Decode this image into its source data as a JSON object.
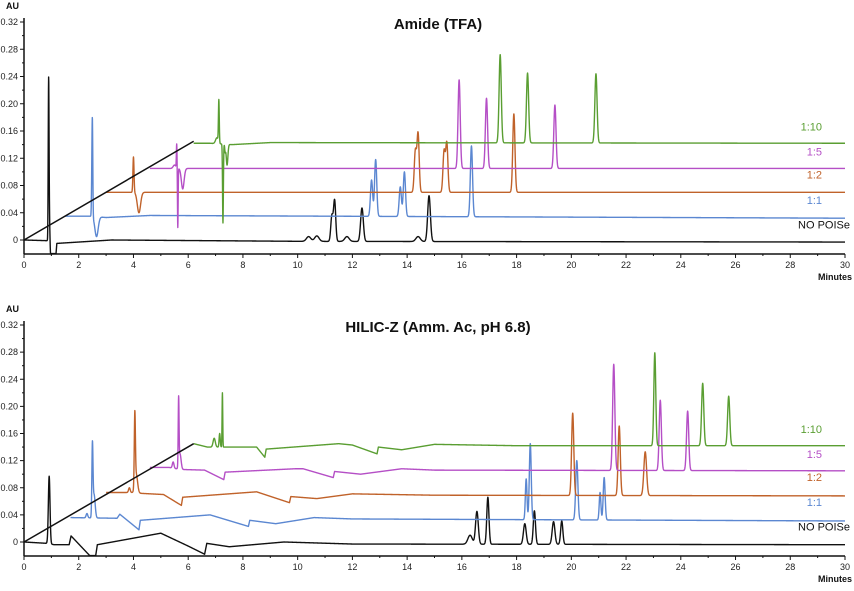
{
  "chart_data": [
    {
      "type": "line",
      "title": "Amide (TFA)",
      "xlabel": "Minutes",
      "ylabel": "AU",
      "xlim": [
        0,
        30
      ],
      "ylim": [
        -0.02,
        0.32
      ],
      "xticks": [
        "0",
        "2",
        "4",
        "6",
        "8",
        "10",
        "12",
        "14",
        "16",
        "18",
        "20",
        "22",
        "24",
        "26",
        "28",
        "30"
      ],
      "yticks": [
        "0",
        "0.04",
        "0.08",
        "0.12",
        "0.16",
        "0.20",
        "0.24",
        "0.28",
        "0.32"
      ],
      "grid": false,
      "gradient_line": [
        [
          0,
          0
        ],
        [
          6.2,
          0.145
        ]
      ],
      "series": [
        {
          "name": "NO POISe",
          "color": "#111111",
          "baseline": [
            [
              0,
              0
            ],
            [
              0.85,
              -0.001
            ],
            [
              0.98,
              -0.03
            ],
            [
              1.15,
              -0.03
            ],
            [
              1.2,
              -0.005
            ],
            [
              3.2,
              0
            ],
            [
              10.3,
              -0.002
            ],
            [
              30,
              -0.003
            ]
          ],
          "peaks": [
            [
              0.9,
              0.225,
              0.015
            ],
            [
              0.93,
              0.025,
              0.02
            ],
            [
              10.4,
              0.005,
              0.08
            ],
            [
              10.7,
              0.006,
              0.08
            ],
            [
              11.25,
              0.035,
              0.04
            ],
            [
              11.35,
              0.058,
              0.04
            ],
            [
              11.8,
              0.005,
              0.08
            ],
            [
              12.35,
              0.047,
              0.05
            ],
            [
              14.4,
              0.005,
              0.08
            ],
            [
              14.8,
              0.065,
              0.05
            ]
          ]
        },
        {
          "name": "1:1",
          "color": "#5b87d1",
          "baseline": [
            [
              1.5,
              0.035
            ],
            [
              2.4,
              0.035
            ],
            [
              3,
              0.033
            ],
            [
              4.6,
              0.036
            ],
            [
              30,
              0.032
            ]
          ],
          "peaks": [
            [
              2.48,
              0.08,
              0.015
            ],
            [
              2.5,
              0.16,
              0.015
            ],
            [
              2.65,
              0.005,
              0.06
            ],
            [
              12.7,
              0.088,
              0.04
            ],
            [
              12.85,
              0.118,
              0.04
            ],
            [
              13.75,
              0.078,
              0.04
            ],
            [
              13.9,
              0.1,
              0.04
            ],
            [
              16.35,
              0.138,
              0.04
            ]
          ]
        },
        {
          "name": "1:2",
          "color": "#c0622a",
          "baseline": [
            [
              3,
              0.07
            ],
            [
              30,
              0.07
            ]
          ],
          "peaks": [
            [
              4.0,
              0.122,
              0.02
            ],
            [
              4.2,
              0.04,
              0.06
            ],
            [
              14.3,
              0.13,
              0.04
            ],
            [
              14.4,
              0.156,
              0.04
            ],
            [
              15.35,
              0.13,
              0.04
            ],
            [
              15.45,
              0.142,
              0.04
            ],
            [
              17.9,
              0.185,
              0.04
            ]
          ]
        },
        {
          "name": "1:5",
          "color": "#b54fc6",
          "baseline": [
            [
              4.6,
              0.105
            ],
            [
              30,
              0.105
            ]
          ],
          "peaks": [
            [
              5.5,
              0.11,
              0.05
            ],
            [
              5.58,
              0.14,
              0.012
            ],
            [
              5.62,
              0.018,
              0.012
            ],
            [
              5.8,
              0.075,
              0.05
            ],
            [
              15.9,
              0.235,
              0.04
            ],
            [
              16.9,
              0.208,
              0.04
            ],
            [
              19.4,
              0.198,
              0.04
            ]
          ]
        },
        {
          "name": "1:10",
          "color": "#5a9e32",
          "baseline": [
            [
              6.2,
              0.142
            ],
            [
              6.8,
              0.142
            ],
            [
              7.6,
              0.14
            ],
            [
              9,
              0.143
            ],
            [
              30,
              0.142
            ]
          ],
          "peaks": [
            [
              7.05,
              0.15,
              0.05
            ],
            [
              7.12,
              0.203,
              0.015
            ],
            [
              7.27,
              0.025,
              0.015
            ],
            [
              7.35,
              0.13,
              0.015
            ],
            [
              7.42,
              0.11,
              0.03
            ],
            [
              17.4,
              0.272,
              0.04
            ],
            [
              18.4,
              0.245,
              0.04
            ],
            [
              20.9,
              0.244,
              0.04
            ]
          ]
        }
      ]
    },
    {
      "type": "line",
      "title": "HILIC-Z (Amm. Ac, pH 6.8)",
      "xlabel": "Minutes",
      "ylabel": "AU",
      "xlim": [
        0,
        30
      ],
      "ylim": [
        -0.02,
        0.32
      ],
      "xticks": [
        "0",
        "2",
        "4",
        "6",
        "8",
        "10",
        "12",
        "14",
        "16",
        "18",
        "20",
        "22",
        "24",
        "26",
        "28",
        "30"
      ],
      "yticks": [
        "0",
        "0.04",
        "0.08",
        "0.12",
        "0.16",
        "0.20",
        "0.24",
        "0.28",
        "0.32"
      ],
      "grid": false,
      "gradient_line": [
        [
          0,
          0
        ],
        [
          6.2,
          0.145
        ]
      ],
      "series": [
        {
          "name": "NO POISe",
          "color": "#111111",
          "baseline": [
            [
              0,
              0
            ],
            [
              0.85,
              -0.002
            ],
            [
              1.1,
              -0.004
            ],
            [
              1.65,
              -0.004
            ],
            [
              1.72,
              0.009
            ],
            [
              2.4,
              -0.02
            ],
            [
              2.62,
              -0.02
            ],
            [
              2.68,
              -0.004
            ],
            [
              5.0,
              0.013
            ],
            [
              6.0,
              -0.006
            ],
            [
              6.6,
              -0.018
            ],
            [
              6.68,
              -0.002
            ],
            [
              7.5,
              -0.007
            ],
            [
              9.5,
              0
            ],
            [
              12,
              -0.003
            ],
            [
              30,
              -0.004
            ]
          ],
          "peaks": [
            [
              0.92,
              0.097,
              0.03
            ],
            [
              16.3,
              0.01,
              0.08
            ],
            [
              16.55,
              0.045,
              0.05
            ],
            [
              16.95,
              0.066,
              0.04
            ],
            [
              18.3,
              0.027,
              0.05
            ],
            [
              18.65,
              0.046,
              0.04
            ],
            [
              19.35,
              0.03,
              0.05
            ],
            [
              19.65,
              0.031,
              0.04
            ]
          ]
        },
        {
          "name": "1:1",
          "color": "#5b87d1",
          "baseline": [
            [
              1.7,
              0.036
            ],
            [
              3.4,
              0.035
            ],
            [
              3.5,
              0.041
            ],
            [
              4.2,
              0.018
            ],
            [
              4.25,
              0.032
            ],
            [
              6.8,
              0.04
            ],
            [
              8.2,
              0.023
            ],
            [
              8.25,
              0.032
            ],
            [
              9.2,
              0.027
            ],
            [
              10.6,
              0.036
            ],
            [
              12,
              0.034
            ],
            [
              30,
              0.031
            ]
          ],
          "peaks": [
            [
              2.3,
              0.042,
              0.03
            ],
            [
              2.5,
              0.138,
              0.02
            ],
            [
              2.56,
              0.07,
              0.04
            ],
            [
              18.35,
              0.093,
              0.03
            ],
            [
              18.5,
              0.145,
              0.035
            ],
            [
              20.2,
              0.12,
              0.04
            ],
            [
              21.05,
              0.073,
              0.03
            ],
            [
              21.2,
              0.095,
              0.035
            ]
          ]
        },
        {
          "name": "1:2",
          "color": "#c0622a",
          "baseline": [
            [
              3,
              0.073
            ],
            [
              3.9,
              0.073
            ],
            [
              4.15,
              0.072
            ],
            [
              5.1,
              0.07
            ],
            [
              5.75,
              0.054
            ],
            [
              5.8,
              0.066
            ],
            [
              8.5,
              0.074
            ],
            [
              9.7,
              0.058
            ],
            [
              9.75,
              0.067
            ],
            [
              10.7,
              0.064
            ],
            [
              12,
              0.071
            ],
            [
              15,
              0.069
            ],
            [
              30,
              0.068
            ]
          ],
          "peaks": [
            [
              3.85,
              0.08,
              0.03
            ],
            [
              4.05,
              0.177,
              0.02
            ],
            [
              4.1,
              0.1,
              0.05
            ],
            [
              20.05,
              0.19,
              0.04
            ],
            [
              21.75,
              0.171,
              0.04
            ],
            [
              22.7,
              0.133,
              0.05
            ]
          ]
        },
        {
          "name": "1:5",
          "color": "#b54fc6",
          "baseline": [
            [
              4.6,
              0.11
            ],
            [
              5.3,
              0.11
            ],
            [
              5.7,
              0.107
            ],
            [
              6.6,
              0.106
            ],
            [
              7.3,
              0.092
            ],
            [
              7.35,
              0.103
            ],
            [
              9.9,
              0.108
            ],
            [
              10.2,
              0.108
            ],
            [
              11.3,
              0.095
            ],
            [
              11.35,
              0.104
            ],
            [
              12.3,
              0.1
            ],
            [
              13.8,
              0.108
            ],
            [
              15,
              0.106
            ],
            [
              30,
              0.105
            ]
          ],
          "peaks": [
            [
              5.45,
              0.118,
              0.03
            ],
            [
              5.65,
              0.205,
              0.015
            ],
            [
              5.7,
              0.13,
              0.04
            ],
            [
              21.55,
              0.262,
              0.04
            ],
            [
              23.25,
              0.209,
              0.04
            ],
            [
              24.25,
              0.193,
              0.04
            ]
          ]
        },
        {
          "name": "1:10",
          "color": "#5a9e32",
          "baseline": [
            [
              6.2,
              0.145
            ],
            [
              6.7,
              0.14
            ],
            [
              8.5,
              0.14
            ],
            [
              8.8,
              0.125
            ],
            [
              8.85,
              0.137
            ],
            [
              11.5,
              0.145
            ],
            [
              12,
              0.143
            ],
            [
              12.9,
              0.13
            ],
            [
              12.95,
              0.14
            ],
            [
              13.8,
              0.136
            ],
            [
              15,
              0.144
            ],
            [
              18,
              0.142
            ],
            [
              30,
              0.142
            ]
          ],
          "peaks": [
            [
              6.95,
              0.153,
              0.04
            ],
            [
              7.15,
              0.16,
              0.02
            ],
            [
              7.25,
              0.22,
              0.012
            ],
            [
              23.05,
              0.279,
              0.035
            ],
            [
              24.8,
              0.234,
              0.04
            ],
            [
              25.75,
              0.215,
              0.04
            ]
          ]
        }
      ]
    }
  ]
}
